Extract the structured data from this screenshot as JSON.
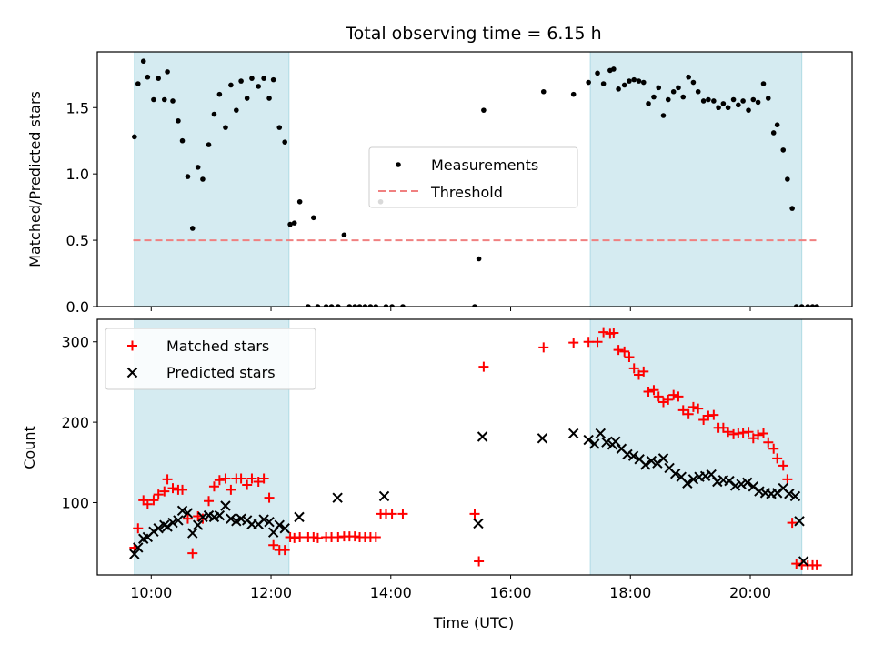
{
  "title": "Total observing time = 6.15 h",
  "chart_data": [
    {
      "type": "scatter",
      "panel": "top",
      "ylabel": "Matched/Predicted stars",
      "ylim": [
        0,
        1.92
      ],
      "xlim": [
        9.1,
        21.7
      ],
      "yticks": [
        0.0,
        0.5,
        1.0,
        1.5
      ],
      "ytick_labels": [
        "0.0",
        "0.5",
        "1.0",
        "1.5"
      ],
      "legend": {
        "placement": "center",
        "entries": [
          "Measurements",
          "Threshold"
        ]
      },
      "threshold": {
        "name": "Threshold",
        "value": 0.5,
        "x_range": [
          9.7,
          21.1
        ],
        "style": "dashed",
        "color": "#f08080"
      },
      "series": [
        {
          "name": "Measurements",
          "marker": "dot",
          "color": "#000000",
          "x": [
            9.72,
            9.78,
            9.87,
            9.94,
            10.04,
            10.12,
            10.22,
            10.27,
            10.36,
            10.45,
            10.52,
            10.61,
            10.69,
            10.78,
            10.86,
            10.96,
            11.05,
            11.14,
            11.24,
            11.33,
            11.42,
            11.5,
            11.6,
            11.68,
            11.79,
            11.88,
            11.97,
            12.04,
            12.14,
            12.23,
            12.32,
            12.39,
            12.48,
            12.62,
            12.71,
            12.78,
            12.92,
            13.01,
            13.12,
            13.22,
            13.31,
            13.4,
            13.48,
            13.57,
            13.66,
            13.75,
            13.83,
            13.92,
            14.02,
            14.2,
            15.4,
            15.47,
            15.55,
            16.55,
            17.05,
            17.3,
            17.45,
            17.55,
            17.66,
            17.72,
            17.8,
            17.9,
            17.98,
            18.06,
            18.14,
            18.22,
            18.3,
            18.39,
            18.47,
            18.55,
            18.63,
            18.72,
            18.8,
            18.88,
            18.97,
            19.05,
            19.13,
            19.22,
            19.3,
            19.39,
            19.47,
            19.55,
            19.63,
            19.72,
            19.8,
            19.88,
            19.97,
            20.05,
            20.13,
            20.22,
            20.3,
            20.39,
            20.45,
            20.55,
            20.62,
            20.7,
            20.77,
            20.86,
            20.96,
            21.04,
            21.11
          ],
          "y": [
            1.28,
            1.68,
            1.85,
            1.73,
            1.56,
            1.72,
            1.56,
            1.77,
            1.55,
            1.4,
            1.25,
            0.98,
            0.59,
            1.05,
            0.96,
            1.22,
            1.45,
            1.6,
            1.35,
            1.67,
            1.48,
            1.7,
            1.57,
            1.72,
            1.66,
            1.72,
            1.57,
            1.71,
            1.35,
            1.24,
            0.62,
            0.63,
            0.79,
            0.0,
            0.67,
            0.0,
            0.0,
            0.0,
            0.0,
            0.54,
            0.0,
            0.0,
            0.0,
            0.0,
            0.0,
            0.0,
            0.79,
            0.0,
            0.0,
            0.0,
            0.0,
            0.36,
            1.48,
            1.62,
            1.6,
            1.69,
            1.76,
            1.68,
            1.78,
            1.79,
            1.64,
            1.67,
            1.7,
            1.71,
            1.7,
            1.69,
            1.53,
            1.58,
            1.65,
            1.44,
            1.56,
            1.62,
            1.65,
            1.58,
            1.73,
            1.69,
            1.62,
            1.55,
            1.56,
            1.55,
            1.5,
            1.53,
            1.5,
            1.56,
            1.52,
            1.55,
            1.48,
            1.56,
            1.54,
            1.68,
            1.57,
            1.31,
            1.37,
            1.18,
            0.96,
            0.74,
            0.0,
            0.0,
            0.0,
            0.0,
            0.0
          ]
        }
      ]
    },
    {
      "type": "scatter",
      "panel": "bottom",
      "xlabel": "Time (UTC)",
      "ylabel": "Count",
      "ylim": [
        10,
        328
      ],
      "xlim": [
        9.1,
        21.7
      ],
      "xticks": [
        10,
        12,
        14,
        16,
        18,
        20
      ],
      "xtick_labels": [
        "10:00",
        "12:00",
        "14:00",
        "16:00",
        "18:00",
        "20:00"
      ],
      "yticks": [
        100,
        200,
        300
      ],
      "ytick_labels": [
        "100",
        "200",
        "300"
      ],
      "legend": {
        "placement": "upper left",
        "entries": [
          "Matched stars",
          "Predicted stars"
        ]
      },
      "series": [
        {
          "name": "Matched stars",
          "marker": "plus",
          "color": "#ff0000",
          "x": [
            9.72,
            9.78,
            9.87,
            9.94,
            10.04,
            10.12,
            10.22,
            10.27,
            10.36,
            10.45,
            10.52,
            10.61,
            10.69,
            10.78,
            10.86,
            10.96,
            11.05,
            11.14,
            11.24,
            11.33,
            11.42,
            11.5,
            11.6,
            11.68,
            11.79,
            11.88,
            11.97,
            12.04,
            12.14,
            12.23,
            12.32,
            12.39,
            12.48,
            12.62,
            12.71,
            12.78,
            12.92,
            13.01,
            13.12,
            13.22,
            13.31,
            13.4,
            13.48,
            13.57,
            13.66,
            13.75,
            13.83,
            13.92,
            14.02,
            14.2,
            15.4,
            15.47,
            15.55,
            16.55,
            17.05,
            17.3,
            17.45,
            17.55,
            17.66,
            17.72,
            17.8,
            17.9,
            17.98,
            18.06,
            18.14,
            18.22,
            18.3,
            18.39,
            18.47,
            18.55,
            18.63,
            18.72,
            18.8,
            18.88,
            18.97,
            19.05,
            19.13,
            19.22,
            19.3,
            19.39,
            19.47,
            19.55,
            19.63,
            19.72,
            19.8,
            19.88,
            19.97,
            20.05,
            20.13,
            20.22,
            20.3,
            20.39,
            20.45,
            20.55,
            20.62,
            20.7,
            20.77,
            20.86,
            20.96,
            21.04,
            21.11
          ],
          "y": [
            44,
            68,
            103,
            98,
            103,
            110,
            114,
            129,
            118,
            116,
            116,
            80,
            37,
            83,
            80,
            102,
            120,
            128,
            130,
            116,
            130,
            130,
            122,
            130,
            126,
            130,
            106,
            47,
            41,
            41,
            57,
            56,
            57,
            57,
            57,
            56,
            57,
            57,
            57,
            58,
            58,
            58,
            57,
            57,
            57,
            57,
            86,
            86,
            86,
            86,
            86,
            27,
            269,
            293,
            299,
            300,
            300,
            312,
            310,
            311,
            290,
            288,
            281,
            267,
            259,
            263,
            238,
            240,
            232,
            225,
            228,
            234,
            232,
            215,
            210,
            219,
            217,
            203,
            208,
            209,
            193,
            193,
            188,
            185,
            186,
            187,
            188,
            180,
            184,
            186,
            175,
            167,
            155,
            146,
            129,
            75,
            24,
            22,
            22,
            22,
            22
          ]
        },
        {
          "name": "Predicted stars",
          "marker": "x",
          "color": "#000000",
          "x": [
            9.72,
            9.78,
            9.87,
            9.94,
            10.04,
            10.12,
            10.22,
            10.27,
            10.36,
            10.45,
            10.52,
            10.61,
            10.69,
            10.78,
            10.86,
            10.96,
            11.05,
            11.14,
            11.24,
            11.33,
            11.42,
            11.5,
            11.6,
            11.68,
            11.79,
            11.88,
            11.97,
            12.04,
            12.14,
            12.23,
            12.47,
            13.11,
            13.89,
            15.46,
            15.53,
            16.53,
            17.05,
            17.3,
            17.4,
            17.5,
            17.6,
            17.7,
            17.75,
            17.85,
            17.95,
            18.05,
            18.15,
            18.25,
            18.35,
            18.45,
            18.55,
            18.65,
            18.75,
            18.85,
            18.95,
            19.05,
            19.15,
            19.25,
            19.35,
            19.45,
            19.55,
            19.65,
            19.75,
            19.85,
            19.95,
            20.05,
            20.15,
            20.25,
            20.35,
            20.45,
            20.55,
            20.65,
            20.75,
            20.82,
            20.89
          ],
          "y": [
            36,
            44,
            55,
            57,
            64,
            68,
            72,
            70,
            75,
            78,
            90,
            87,
            62,
            72,
            82,
            84,
            82,
            84,
            96,
            80,
            77,
            80,
            78,
            73,
            73,
            79,
            76,
            63,
            72,
            68,
            82,
            106,
            108,
            74,
            182,
            180,
            186,
            178,
            173,
            186,
            175,
            172,
            176,
            167,
            160,
            158,
            154,
            147,
            152,
            149,
            155,
            143,
            136,
            132,
            124,
            129,
            132,
            133,
            135,
            126,
            128,
            127,
            121,
            123,
            125,
            120,
            114,
            112,
            111,
            112,
            118,
            111,
            108,
            77,
            27
          ]
        }
      ]
    }
  ],
  "shaded_intervals": [
    [
      9.72,
      12.3
    ],
    [
      17.33,
      20.86
    ]
  ],
  "colors": {
    "shade": "#d5ebf1",
    "shade_edge": "#b0dbe5",
    "threshold": "#f08080",
    "matched": "#ff0000",
    "predicted": "#000000"
  }
}
